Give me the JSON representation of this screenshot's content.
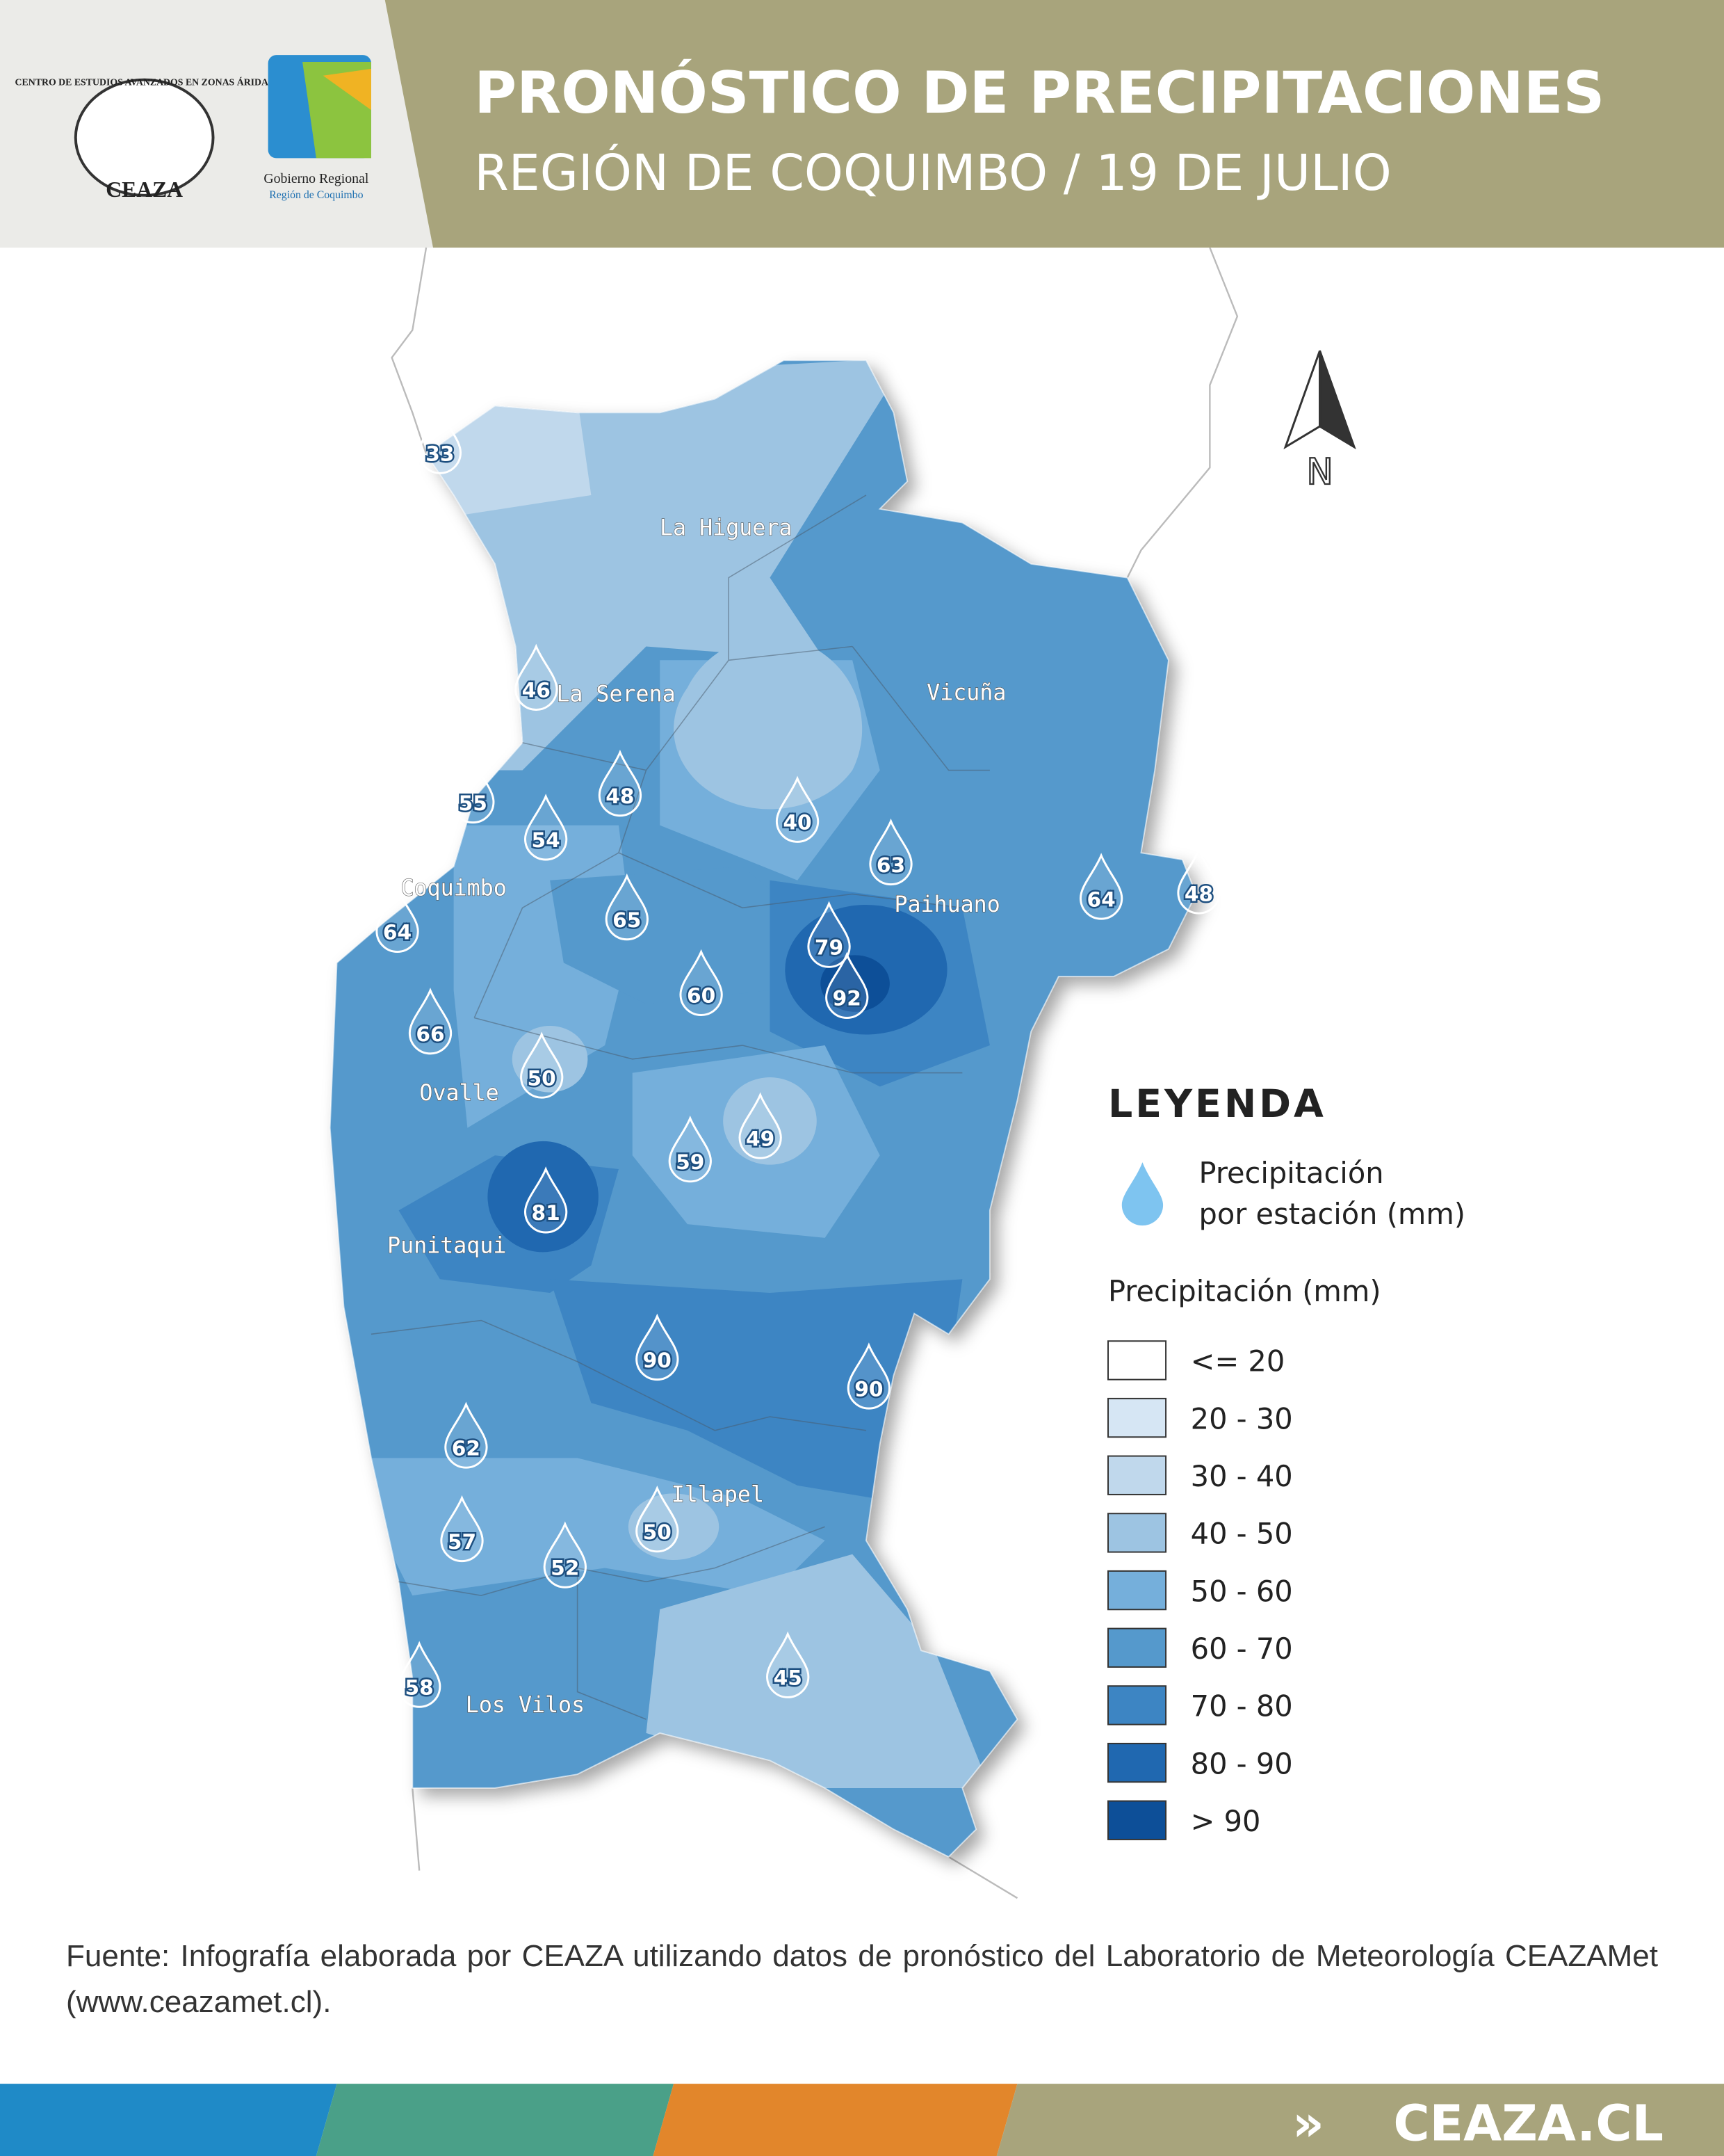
{
  "header": {
    "logo_left": {
      "arc_text": "CENTRO DE ESTUDIOS AVANZADOS EN ZONAS ÁRIDAS",
      "name": "CEAZA"
    },
    "logo_right": {
      "line1": "Gobierno Regional",
      "line2": "Región de Coquimbo"
    },
    "title": "PRONÓSTICO DE PRECIPITACIONES",
    "subtitle": "REGIÓN DE COQUIMBO / 19 DE JULIO"
  },
  "map": {
    "north": "N",
    "places": [
      "La Higuera",
      "La Serena",
      "Vicuña",
      "Coquimbo",
      "Paihuano",
      "Ovalle",
      "Punitaqui",
      "Illapel",
      "Los Vilos"
    ],
    "stations": [
      33,
      46,
      55,
      48,
      54,
      40,
      63,
      64,
      48,
      65,
      64,
      79,
      92,
      60,
      66,
      50,
      49,
      59,
      81,
      90,
      90,
      62,
      50,
      57,
      52,
      45,
      58
    ]
  },
  "legend": {
    "title": "LEYENDA",
    "station_label_1": "Precipitación",
    "station_label_2": "por estación (mm)",
    "precip_title": "Precipitación (mm)",
    "classes": [
      {
        "label": "<= 20",
        "color": "#ffffff"
      },
      {
        "label": "20 - 30",
        "color": "#d6e6f4"
      },
      {
        "label": "30 - 40",
        "color": "#c0d8ec"
      },
      {
        "label": "40 - 50",
        "color": "#9dc4e2"
      },
      {
        "label": "50 - 60",
        "color": "#75afdb"
      },
      {
        "label": "60 - 70",
        "color": "#5599cc"
      },
      {
        "label": "70 - 80",
        "color": "#3d85c3"
      },
      {
        "label": "80 - 90",
        "color": "#2068b0"
      },
      {
        "label": "> 90",
        "color": "#0d4f98"
      }
    ]
  },
  "footer": {
    "source": "Fuente: Infografía elaborada por CEAZA utilizando datos de pronóstico del Laboratorio de Meteorología CEAZAMet (www.ceazamet.cl).",
    "link": "CEAZA.CL"
  }
}
